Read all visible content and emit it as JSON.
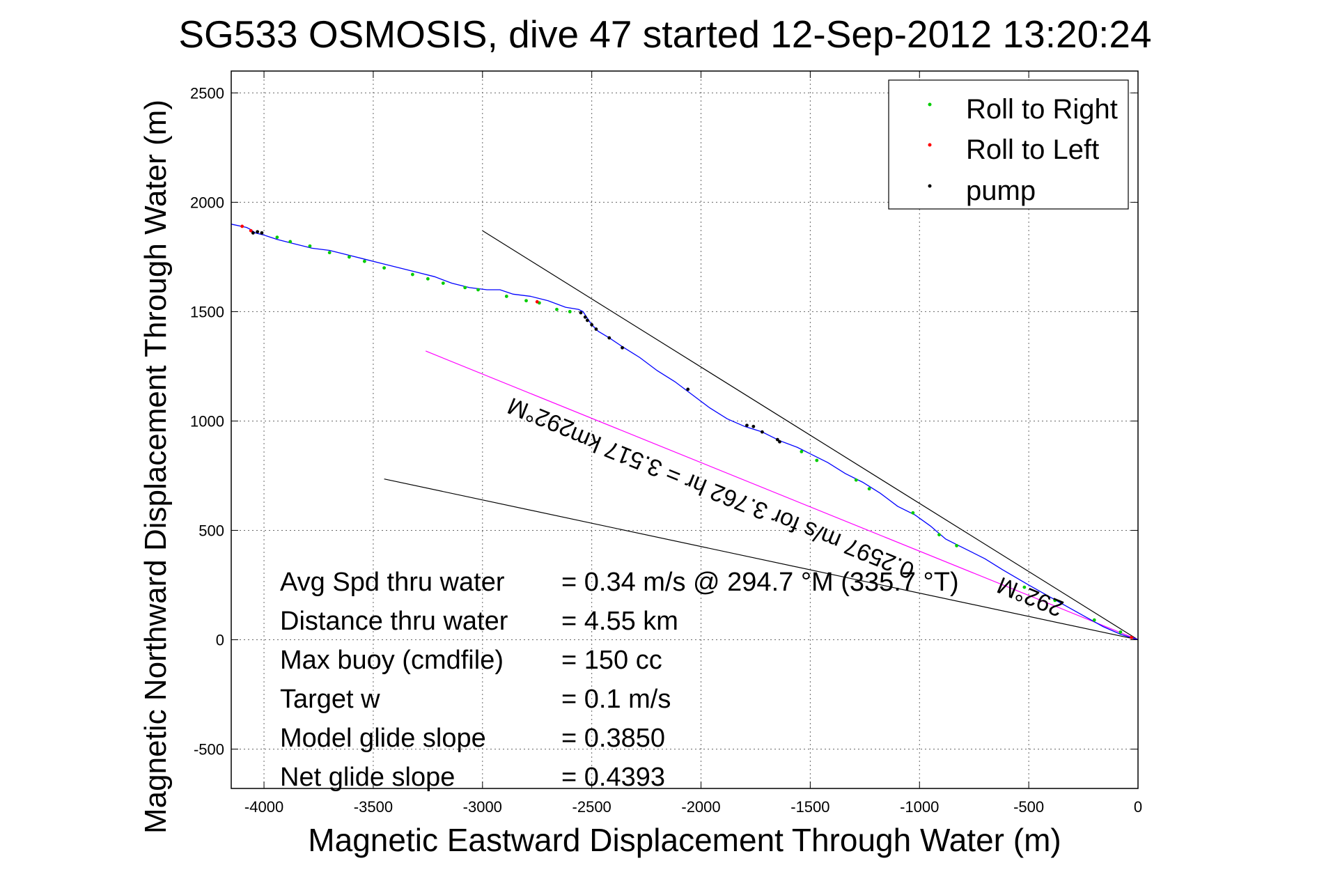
{
  "chart_data": {
    "type": "line",
    "title": "SG533 OSMOSIS, dive 47 started 12-Sep-2012 13:20:24",
    "xlabel": "Magnetic Eastward Displacement Through Water (m)",
    "ylabel": "Magnetic Northward Displacement Through Water (m)",
    "xlim": [
      -4150,
      0
    ],
    "ylim": [
      -680,
      2600
    ],
    "xticks": [
      -4000,
      -3500,
      -3000,
      -2500,
      -2000,
      -1500,
      -1000,
      -500,
      0
    ],
    "yticks": [
      -500,
      0,
      500,
      1000,
      1500,
      2000,
      2500
    ],
    "grid": true,
    "legend_position": "top-right",
    "legend": [
      {
        "label": "Roll to Right",
        "color": "#00cc00"
      },
      {
        "label": "Roll to Left",
        "color": "#ff0000"
      },
      {
        "label": "pump",
        "color": "#000000"
      }
    ],
    "track": {
      "name": "track",
      "color": "#0000ff",
      "x": [
        0,
        -80,
        -160,
        -250,
        -340,
        -420,
        -500,
        -560,
        -620,
        -700,
        -760,
        -820,
        -880,
        -950,
        -1020,
        -1100,
        -1180,
        -1260,
        -1340,
        -1420,
        -1500,
        -1560,
        -1640,
        -1720,
        -1800,
        -1880,
        -1960,
        -2040,
        -2120,
        -2200,
        -2280,
        -2360,
        -2420,
        -2470,
        -2500,
        -2520,
        -2540,
        -2560,
        -2620,
        -2700,
        -2780,
        -2860,
        -2920,
        -2980,
        -3060,
        -3140,
        -3220,
        -3300,
        -3380,
        -3460,
        -3540,
        -3620,
        -3700,
        -3780,
        -3860,
        -3940,
        -4000,
        -4040,
        -4060,
        -4080,
        -4150
      ],
      "y": [
        0,
        25,
        60,
        110,
        160,
        205,
        250,
        285,
        320,
        370,
        400,
        430,
        460,
        520,
        570,
        610,
        670,
        720,
        760,
        810,
        850,
        880,
        910,
        950,
        975,
        1010,
        1060,
        1120,
        1180,
        1230,
        1290,
        1340,
        1380,
        1410,
        1440,
        1470,
        1500,
        1510,
        1520,
        1550,
        1570,
        1580,
        1600,
        1600,
        1610,
        1630,
        1660,
        1680,
        1700,
        1720,
        1740,
        1760,
        1780,
        1790,
        1810,
        1830,
        1850,
        1860,
        1875,
        1885,
        1900
      ]
    },
    "roll_right_points": {
      "x": [
        -80,
        -200,
        -380,
        -520,
        -830,
        -910,
        -1030,
        -1230,
        -1290,
        -1470,
        -1540,
        -2600,
        -2660,
        -2740,
        -2800,
        -2890,
        -3020,
        -3080,
        -3180,
        -3250,
        -3320,
        -3450,
        -3540,
        -3610,
        -3700,
        -3790,
        -3880,
        -3940
      ],
      "y": [
        35,
        90,
        180,
        240,
        430,
        480,
        580,
        690,
        730,
        820,
        860,
        1500,
        1510,
        1540,
        1550,
        1570,
        1600,
        1610,
        1630,
        1650,
        1670,
        1700,
        1730,
        1750,
        1770,
        1800,
        1820,
        1840
      ]
    },
    "roll_left_points": {
      "x": [
        -30,
        -2750,
        -4060,
        -4100
      ],
      "y": [
        10,
        1545,
        1870,
        1890
      ]
    },
    "pump_points": {
      "x": [
        -2360,
        -2420,
        -2480,
        -2500,
        -2520,
        -2530,
        -2550,
        -2060,
        -1790,
        -1760,
        -1720,
        -1650,
        -1640,
        -4010,
        -4030,
        -4050
      ],
      "y": [
        1335,
        1380,
        1420,
        1440,
        1460,
        1475,
        1495,
        1145,
        980,
        975,
        950,
        915,
        905,
        1860,
        1865,
        1860
      ]
    },
    "reference_lines": [
      {
        "name": "upper-bound",
        "color": "#000000",
        "x": [
          0,
          -3000
        ],
        "y": [
          0,
          1870
        ]
      },
      {
        "name": "lower-bound",
        "color": "#000000",
        "x": [
          0,
          -3450
        ],
        "y": [
          0,
          735
        ]
      },
      {
        "name": "mean-heading",
        "color": "#ff00ff",
        "x": [
          0,
          -3260
        ],
        "y": [
          0,
          1320
        ]
      }
    ],
    "direction_labels": [
      {
        "text": "292°M",
        "x": -2720,
        "y": 1050,
        "rotation_deg": 22
      },
      {
        "text": "292°M",
        "x": -480,
        "y": 230,
        "rotation_deg": 22
      },
      {
        "text": "0.2597 m/s for 3.762 hr = 3.517 km",
        "x": -1800,
        "y": 660,
        "rotation_deg": 22
      }
    ],
    "annotations": [
      {
        "label": "Avg Spd thru water",
        "value": "=  0.34 m/s @ 294.7 °M (335.7 °T)"
      },
      {
        "label": "Distance thru water",
        "value": "=  4.55 km"
      },
      {
        "label": "Max buoy (cmdfile)",
        "value": "= 150 cc"
      },
      {
        "label": "Target w",
        "value": "= 0.1 m/s"
      },
      {
        "label": "Model glide slope",
        "value": "= 0.3850"
      },
      {
        "label": "Net glide slope",
        "value": "= 0.4393"
      }
    ]
  }
}
